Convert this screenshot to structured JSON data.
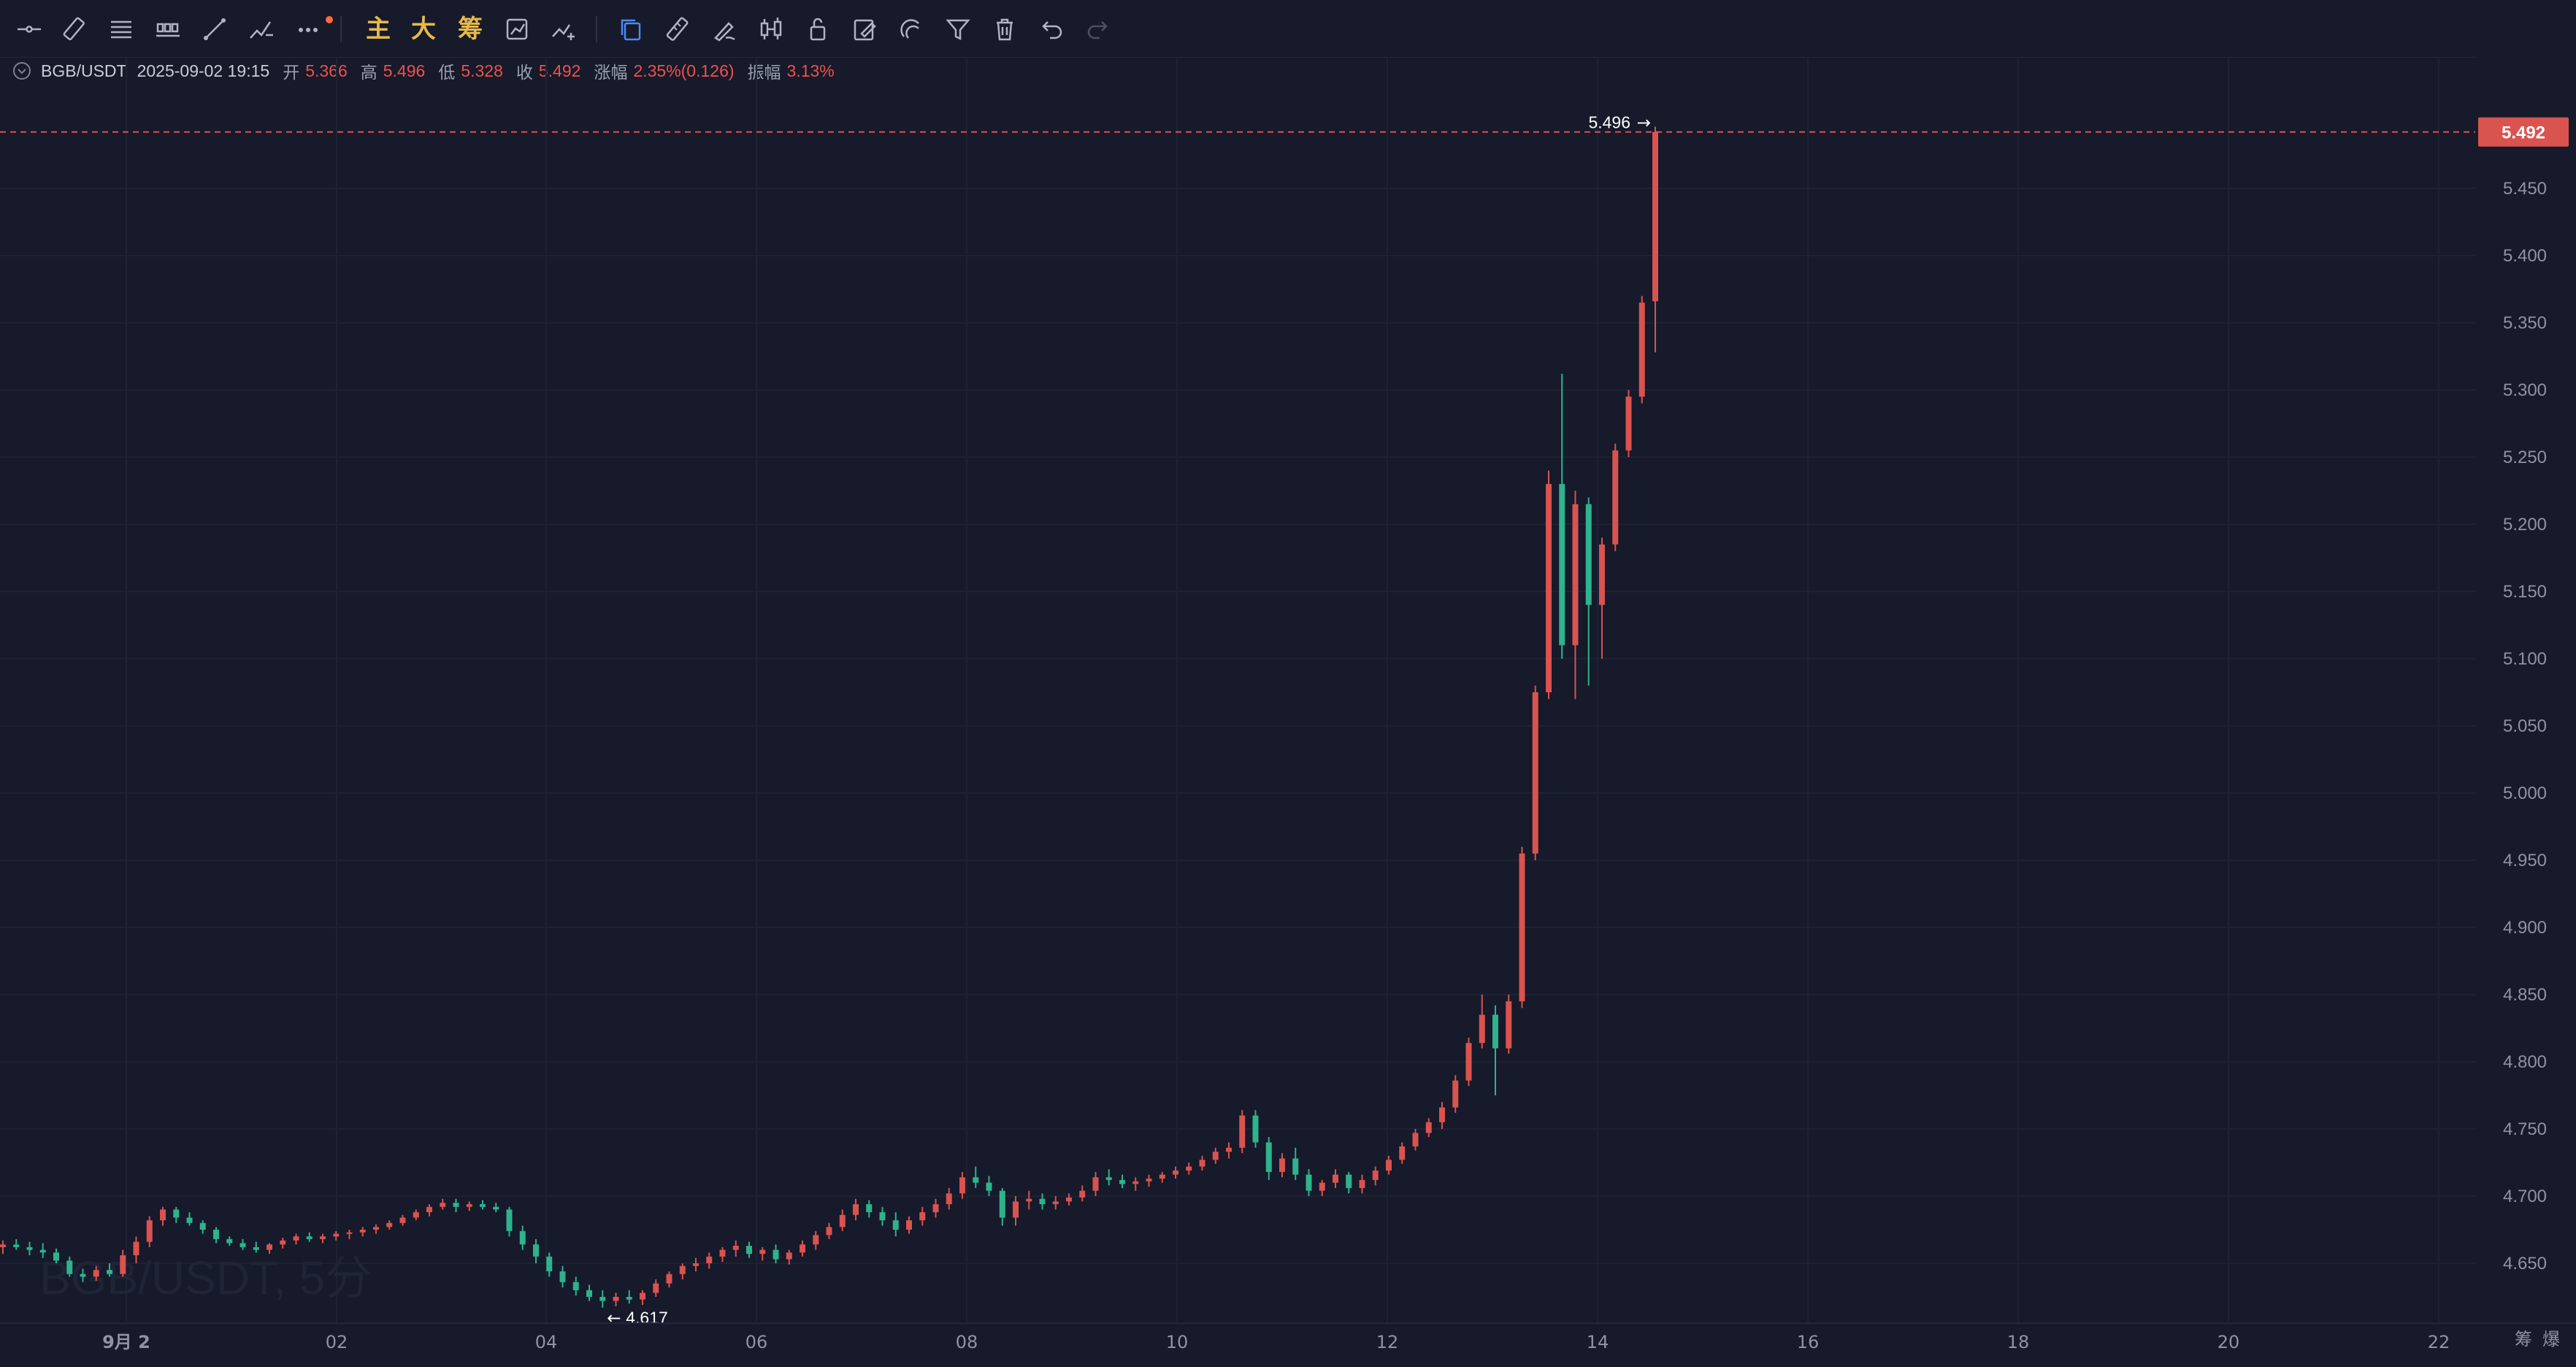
{
  "toolbar": {
    "main_label": "主",
    "big_label": "大",
    "chip_label": "筹",
    "colors": {
      "icon": "#aeb4c4",
      "text_tools": "#e6b94b",
      "active": "#4a8af4",
      "disabled": "#4b5164",
      "badge": "#ff6a3d"
    }
  },
  "infobar": {
    "symbol": "BGB/USDT",
    "datetime": "2025-09-02 19:15",
    "open_label": "开",
    "open": "5.366",
    "high_label": "高",
    "high": "5.496",
    "low_label": "低",
    "low": "5.328",
    "close_label": "收",
    "close": "5.492",
    "change_label": "涨幅",
    "change": "2.35%(0.126)",
    "amplitude_label": "振幅",
    "amplitude": "3.13%"
  },
  "chart_data": {
    "type": "candlestick",
    "title": "",
    "watermark": "BGB/USDT, 5分",
    "x_tick_labels": [
      "9月 2",
      "02",
      "04",
      "06",
      "08",
      "10",
      "12",
      "14",
      "16",
      "18",
      "20",
      "22"
    ],
    "y_tick_labels": [
      "4.650",
      "4.700",
      "4.750",
      "4.800",
      "4.850",
      "4.900",
      "4.950",
      "5.000",
      "5.050",
      "5.100",
      "5.150",
      "5.200",
      "5.250",
      "5.300",
      "5.350",
      "5.400",
      "5.450"
    ],
    "ylim": [
      4.61,
      5.51
    ],
    "current_price": "5.492",
    "max_marker": "5.496",
    "min_marker": "4.617",
    "corner_labels": [
      "筹",
      "爆"
    ],
    "colors": {
      "up": "#d9534f",
      "down": "#2fb28e",
      "grid": "#1e2334",
      "axis_text": "#8e93a6",
      "price_line": "#d9534f"
    },
    "candles": [
      [
        4.662,
        4.667,
        4.657,
        4.664
      ],
      [
        4.664,
        4.668,
        4.66,
        4.662
      ],
      [
        4.662,
        4.666,
        4.656,
        4.66
      ],
      [
        4.66,
        4.665,
        4.654,
        4.658
      ],
      [
        4.658,
        4.661,
        4.65,
        4.652
      ],
      [
        4.652,
        4.655,
        4.64,
        4.642
      ],
      [
        4.642,
        4.646,
        4.636,
        4.64
      ],
      [
        4.64,
        4.648,
        4.637,
        4.645
      ],
      [
        4.645,
        4.65,
        4.64,
        4.642
      ],
      [
        4.642,
        4.66,
        4.64,
        4.656
      ],
      [
        4.656,
        4.67,
        4.65,
        4.666
      ],
      [
        4.666,
        4.685,
        4.662,
        4.682
      ],
      [
        4.682,
        4.692,
        4.678,
        4.69
      ],
      [
        4.69,
        4.692,
        4.68,
        4.684
      ],
      [
        4.684,
        4.688,
        4.678,
        4.68
      ],
      [
        4.68,
        4.682,
        4.672,
        4.675
      ],
      [
        4.675,
        4.677,
        4.665,
        4.668
      ],
      [
        4.668,
        4.67,
        4.663,
        4.665
      ],
      [
        4.665,
        4.668,
        4.66,
        4.662
      ],
      [
        4.662,
        4.666,
        4.658,
        4.66
      ],
      [
        4.66,
        4.665,
        4.657,
        4.664
      ],
      [
        4.664,
        4.669,
        4.661,
        4.667
      ],
      [
        4.667,
        4.672,
        4.664,
        4.67
      ],
      [
        4.67,
        4.673,
        4.666,
        4.668
      ],
      [
        4.668,
        4.672,
        4.665,
        4.67
      ],
      [
        4.67,
        4.674,
        4.667,
        4.672
      ],
      [
        4.672,
        4.675,
        4.668,
        4.673
      ],
      [
        4.673,
        4.677,
        4.67,
        4.675
      ],
      [
        4.675,
        4.679,
        4.672,
        4.677
      ],
      [
        4.677,
        4.682,
        4.675,
        4.68
      ],
      [
        4.68,
        4.686,
        4.678,
        4.684
      ],
      [
        4.684,
        4.69,
        4.682,
        4.688
      ],
      [
        4.688,
        4.694,
        4.685,
        4.692
      ],
      [
        4.692,
        4.698,
        4.69,
        4.695
      ],
      [
        4.695,
        4.698,
        4.688,
        4.692
      ],
      [
        4.692,
        4.696,
        4.689,
        4.694
      ],
      [
        4.694,
        4.697,
        4.69,
        4.692
      ],
      [
        4.692,
        4.695,
        4.688,
        4.69
      ],
      [
        4.69,
        4.692,
        4.67,
        4.674
      ],
      [
        4.674,
        4.678,
        4.66,
        4.664
      ],
      [
        4.664,
        4.668,
        4.65,
        4.655
      ],
      [
        4.655,
        4.658,
        4.64,
        4.644
      ],
      [
        4.644,
        4.648,
        4.632,
        4.636
      ],
      [
        4.636,
        4.64,
        4.626,
        4.63
      ],
      [
        4.63,
        4.634,
        4.622,
        4.625
      ],
      [
        4.625,
        4.63,
        4.617,
        4.622
      ],
      [
        4.622,
        4.628,
        4.618,
        4.625
      ],
      [
        4.625,
        4.63,
        4.62,
        4.623
      ],
      [
        4.623,
        4.63,
        4.619,
        4.628
      ],
      [
        4.628,
        4.638,
        4.625,
        4.635
      ],
      [
        4.635,
        4.644,
        4.632,
        4.642
      ],
      [
        4.642,
        4.65,
        4.638,
        4.648
      ],
      [
        4.648,
        4.654,
        4.644,
        4.65
      ],
      [
        4.65,
        4.658,
        4.646,
        4.655
      ],
      [
        4.655,
        4.662,
        4.651,
        4.66
      ],
      [
        4.66,
        4.667,
        4.655,
        4.663
      ],
      [
        4.663,
        4.666,
        4.654,
        4.657
      ],
      [
        4.657,
        4.662,
        4.652,
        4.66
      ],
      [
        4.66,
        4.664,
        4.65,
        4.653
      ],
      [
        4.653,
        4.66,
        4.649,
        4.658
      ],
      [
        4.658,
        4.667,
        4.655,
        4.664
      ],
      [
        4.664,
        4.674,
        4.66,
        4.671
      ],
      [
        4.671,
        4.68,
        4.668,
        4.677
      ],
      [
        4.677,
        4.69,
        4.674,
        4.686
      ],
      [
        4.686,
        4.698,
        4.682,
        4.694
      ],
      [
        4.694,
        4.697,
        4.684,
        4.688
      ],
      [
        4.688,
        4.692,
        4.678,
        4.682
      ],
      [
        4.682,
        4.688,
        4.67,
        4.675
      ],
      [
        4.675,
        4.685,
        4.672,
        4.682
      ],
      [
        4.682,
        4.692,
        4.678,
        4.688
      ],
      [
        4.688,
        4.698,
        4.684,
        4.694
      ],
      [
        4.694,
        4.706,
        4.69,
        4.702
      ],
      [
        4.702,
        4.718,
        4.698,
        4.714
      ],
      [
        4.714,
        4.722,
        4.706,
        4.71
      ],
      [
        4.71,
        4.715,
        4.7,
        4.704
      ],
      [
        4.704,
        4.706,
        4.678,
        4.684
      ],
      [
        4.684,
        4.7,
        4.678,
        4.696
      ],
      [
        4.696,
        4.704,
        4.69,
        4.698
      ],
      [
        4.698,
        4.702,
        4.69,
        4.694
      ],
      [
        4.694,
        4.7,
        4.69,
        4.696
      ],
      [
        4.696,
        4.702,
        4.693,
        4.699
      ],
      [
        4.699,
        4.708,
        4.696,
        4.704
      ],
      [
        4.704,
        4.718,
        4.7,
        4.714
      ],
      [
        4.714,
        4.72,
        4.708,
        4.712
      ],
      [
        4.712,
        4.716,
        4.706,
        4.709
      ],
      [
        4.709,
        4.714,
        4.704,
        4.711
      ],
      [
        4.711,
        4.716,
        4.707,
        4.713
      ],
      [
        4.713,
        4.718,
        4.71,
        4.716
      ],
      [
        4.716,
        4.722,
        4.713,
        4.719
      ],
      [
        4.719,
        4.725,
        4.716,
        4.722
      ],
      [
        4.722,
        4.73,
        4.719,
        4.727
      ],
      [
        4.727,
        4.736,
        4.724,
        4.733
      ],
      [
        4.733,
        4.74,
        4.728,
        4.736
      ],
      [
        4.736,
        4.764,
        4.732,
        4.76
      ],
      [
        4.76,
        4.764,
        4.736,
        4.74
      ],
      [
        4.74,
        4.744,
        4.712,
        4.718
      ],
      [
        4.718,
        4.732,
        4.714,
        4.728
      ],
      [
        4.728,
        4.736,
        4.712,
        4.716
      ],
      [
        4.716,
        4.72,
        4.7,
        4.704
      ],
      [
        4.704,
        4.712,
        4.7,
        4.71
      ],
      [
        4.71,
        4.72,
        4.706,
        4.716
      ],
      [
        4.716,
        4.718,
        4.702,
        4.706
      ],
      [
        4.706,
        4.716,
        4.702,
        4.712
      ],
      [
        4.712,
        4.722,
        4.708,
        4.719
      ],
      [
        4.719,
        4.73,
        4.716,
        4.727
      ],
      [
        4.727,
        4.74,
        4.724,
        4.737
      ],
      [
        4.737,
        4.75,
        4.734,
        4.747
      ],
      [
        4.747,
        4.758,
        4.744,
        4.755
      ],
      [
        4.755,
        4.77,
        4.75,
        4.766
      ],
      [
        4.766,
        4.79,
        4.762,
        4.786
      ],
      [
        4.786,
        4.818,
        4.782,
        4.814
      ],
      [
        4.814,
        4.85,
        4.81,
        4.835
      ],
      [
        4.835,
        4.842,
        4.775,
        4.81
      ],
      [
        4.81,
        4.85,
        4.806,
        4.845
      ],
      [
        4.845,
        4.96,
        4.84,
        4.955
      ],
      [
        4.955,
        5.08,
        4.95,
        5.075
      ],
      [
        5.075,
        5.24,
        5.07,
        5.23
      ],
      [
        5.23,
        5.312,
        5.1,
        5.11
      ],
      [
        5.11,
        5.225,
        5.07,
        5.215
      ],
      [
        5.215,
        5.22,
        5.08,
        5.14
      ],
      [
        5.14,
        5.19,
        5.1,
        5.185
      ],
      [
        5.185,
        5.26,
        5.18,
        5.255
      ],
      [
        5.255,
        5.3,
        5.25,
        5.295
      ],
      [
        5.295,
        5.37,
        5.29,
        5.365
      ],
      [
        5.366,
        5.496,
        5.328,
        5.492
      ]
    ]
  }
}
